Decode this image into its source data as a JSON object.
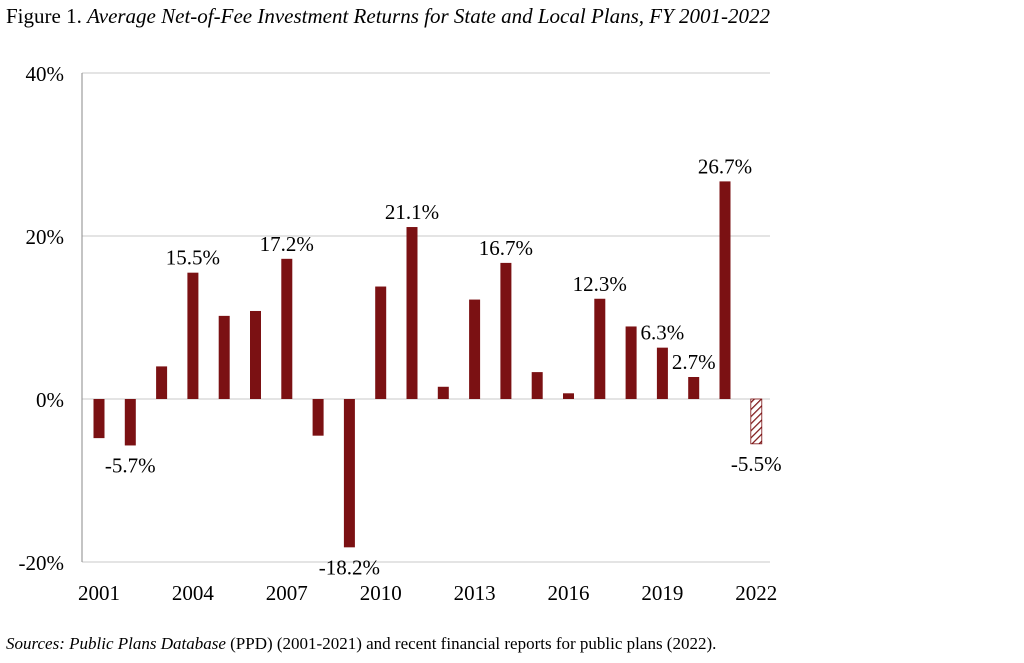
{
  "title": {
    "figure_label": "Figure 1.",
    "text": "Average Net-of-Fee Investment Returns for State and Local Plans, FY 2001-2022"
  },
  "source": {
    "label": "Sources:",
    "italic_part": "Public Plans Database",
    "rest": "(PPD) (2001-2021) and recent financial reports for public plans (2022)."
  },
  "colors": {
    "bar": "#7b1113",
    "estimate_hatch": "#7b1113",
    "grid": "#c8c8c8",
    "axis": "#8a8a8a"
  },
  "chart_data": {
    "type": "bar",
    "title": "Average Net-of-Fee Investment Returns for State and Local Plans, FY 2001-2022",
    "categories": [
      2001,
      2002,
      2003,
      2004,
      2005,
      2006,
      2007,
      2008,
      2009,
      2010,
      2011,
      2012,
      2013,
      2014,
      2015,
      2016,
      2017,
      2018,
      2019,
      2020,
      2021,
      2022
    ],
    "values": [
      -4.8,
      -5.7,
      4.0,
      15.5,
      10.2,
      10.8,
      17.2,
      -4.5,
      -18.2,
      13.8,
      21.1,
      1.5,
      12.2,
      16.7,
      3.3,
      0.7,
      12.3,
      8.9,
      6.3,
      2.7,
      26.7,
      -5.5
    ],
    "bar_style": [
      "solid",
      "solid",
      "solid",
      "solid",
      "solid",
      "solid",
      "solid",
      "solid",
      "solid",
      "solid",
      "solid",
      "solid",
      "solid",
      "solid",
      "solid",
      "solid",
      "solid",
      "solid",
      "solid",
      "solid",
      "solid",
      "hatched"
    ],
    "data_labels": [
      {
        "year": 2002,
        "text": "-5.7%"
      },
      {
        "year": 2004,
        "text": "15.5%"
      },
      {
        "year": 2007,
        "text": "17.2%"
      },
      {
        "year": 2009,
        "text": "-18.2%"
      },
      {
        "year": 2011,
        "text": "21.1%"
      },
      {
        "year": 2014,
        "text": "16.7%"
      },
      {
        "year": 2017,
        "text": "12.3%"
      },
      {
        "year": 2019,
        "text": "6.3%"
      },
      {
        "year": 2020,
        "text": "2.7%"
      },
      {
        "year": 2021,
        "text": "26.7%"
      },
      {
        "year": 2022,
        "text": "-5.5%"
      }
    ],
    "x_tick_labels": [
      "2001",
      "2004",
      "2007",
      "2010",
      "2013",
      "2016",
      "2019",
      "2022"
    ],
    "y_ticks": [
      -20,
      0,
      20,
      40
    ],
    "y_tick_labels": [
      "-20%",
      "0%",
      "20%",
      "40%"
    ],
    "ylim": [
      -20,
      40
    ],
    "xlabel": "",
    "ylabel": "",
    "grid": true,
    "legend": "none"
  }
}
